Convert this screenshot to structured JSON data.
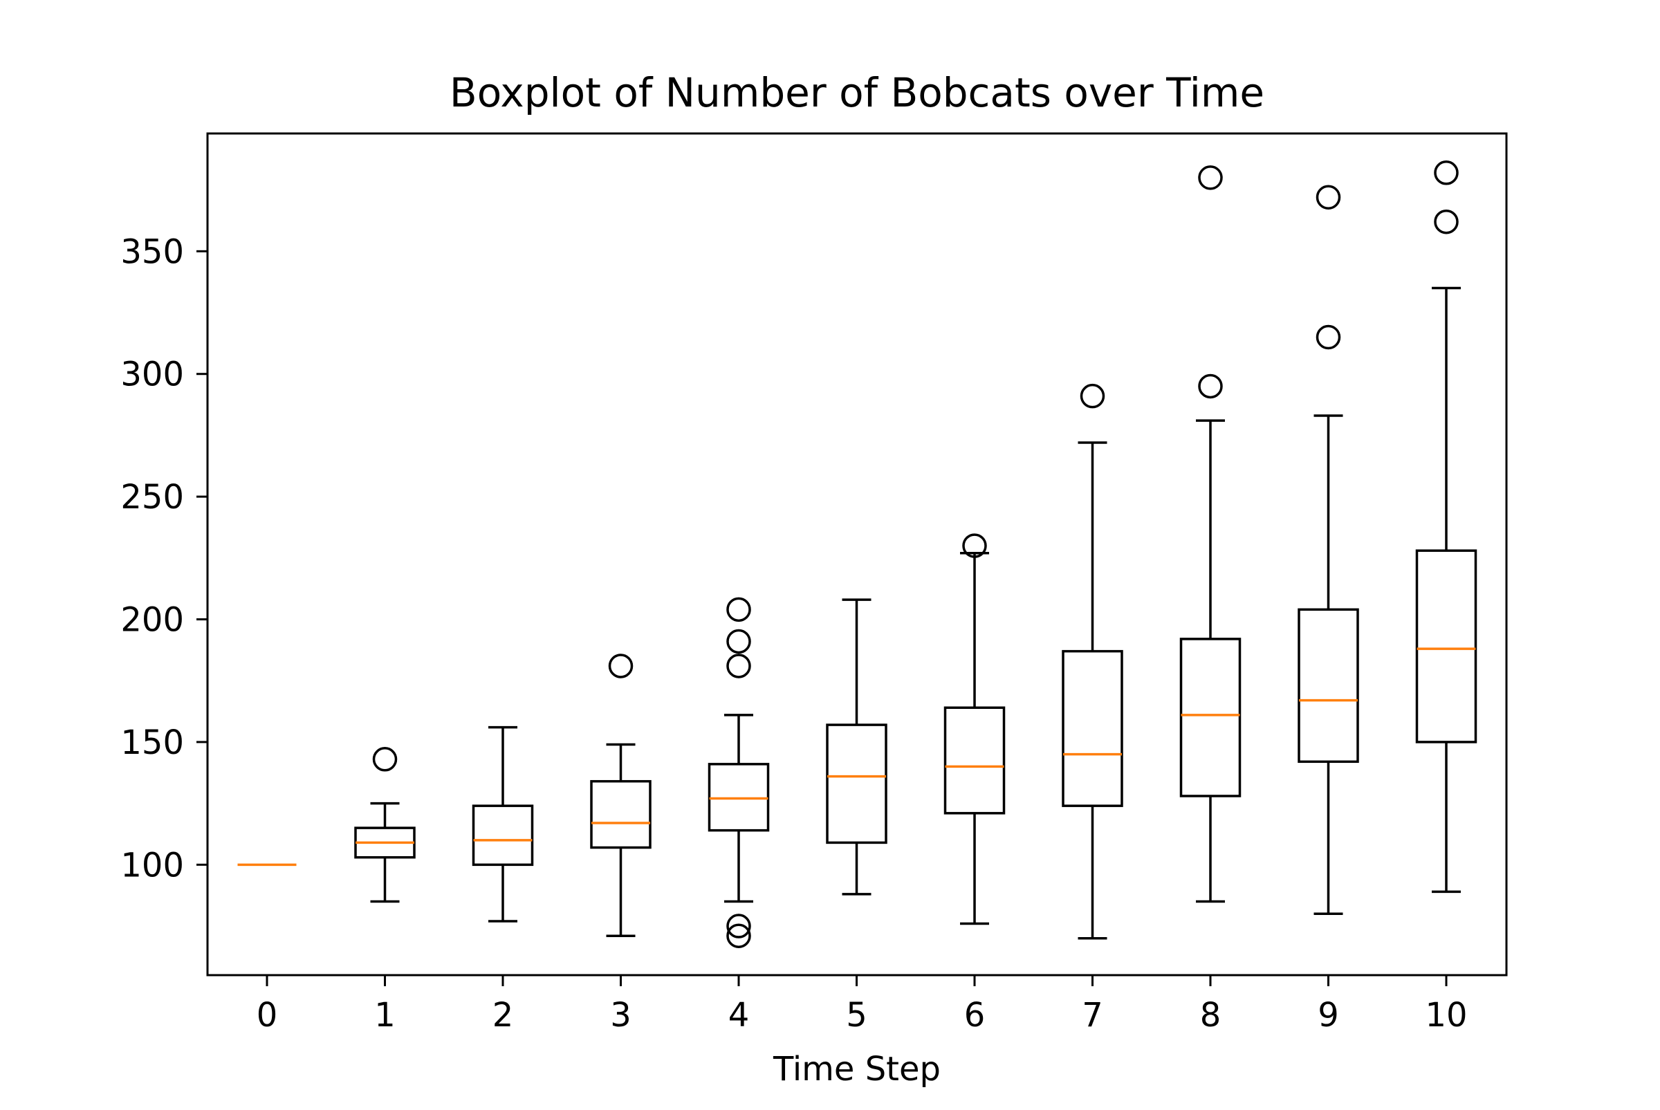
{
  "chart_data": {
    "type": "boxplot",
    "title": "Boxplot of Number of Bobcats over Time",
    "xlabel": "Time Step",
    "ylabel": "",
    "categories": [
      "0",
      "1",
      "2",
      "3",
      "4",
      "5",
      "6",
      "7",
      "8",
      "9",
      "10"
    ],
    "yticks": [
      100,
      150,
      200,
      250,
      300,
      350
    ],
    "ylim": [
      55,
      398
    ],
    "grid": false,
    "colors": {
      "box": "#000000",
      "median": "#ff7f0e",
      "flier": "#000000"
    },
    "boxes": [
      {
        "x": "0",
        "min": 100,
        "q1": 100,
        "median": 100,
        "q3": 100,
        "max": 100,
        "fliers": []
      },
      {
        "x": "1",
        "min": 85,
        "q1": 103,
        "median": 109,
        "q3": 115,
        "max": 125,
        "fliers": [
          143
        ]
      },
      {
        "x": "2",
        "min": 77,
        "q1": 100,
        "median": 110,
        "q3": 124,
        "max": 156,
        "fliers": []
      },
      {
        "x": "3",
        "min": 71,
        "q1": 107,
        "median": 117,
        "q3": 134,
        "max": 149,
        "fliers": [
          181
        ]
      },
      {
        "x": "4",
        "min": 85,
        "q1": 114,
        "median": 127,
        "q3": 141,
        "max": 161,
        "fliers": [
          71,
          75,
          181,
          191,
          204
        ]
      },
      {
        "x": "5",
        "min": 88,
        "q1": 109,
        "median": 136,
        "q3": 157,
        "max": 208,
        "fliers": []
      },
      {
        "x": "6",
        "min": 76,
        "q1": 121,
        "median": 140,
        "q3": 164,
        "max": 227,
        "fliers": [
          230
        ]
      },
      {
        "x": "7",
        "min": 70,
        "q1": 124,
        "median": 145,
        "q3": 187,
        "max": 272,
        "fliers": [
          291
        ]
      },
      {
        "x": "8",
        "min": 85,
        "q1": 128,
        "median": 161,
        "q3": 192,
        "max": 281,
        "fliers": [
          295,
          380
        ]
      },
      {
        "x": "9",
        "min": 80,
        "q1": 142,
        "median": 167,
        "q3": 204,
        "max": 283,
        "fliers": [
          315,
          372
        ]
      },
      {
        "x": "10",
        "min": 89,
        "q1": 150,
        "median": 188,
        "q3": 228,
        "max": 335,
        "fliers": [
          362,
          382
        ]
      }
    ]
  }
}
